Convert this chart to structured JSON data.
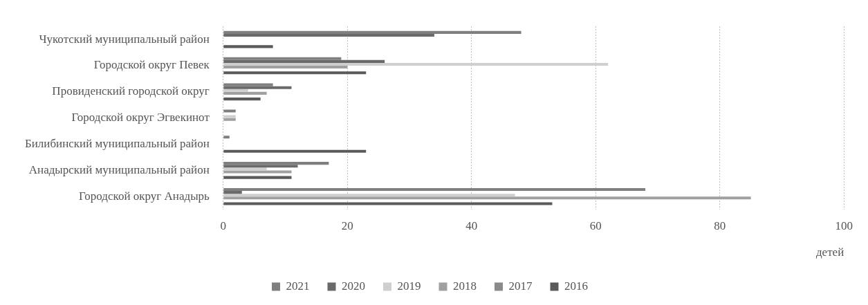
{
  "chart_data": {
    "type": "bar",
    "orientation": "horizontal",
    "categories": [
      "Чукотский муниципальный район",
      "Городской округ Певек",
      "Провиденский городской округ",
      "Городской округ Эгвекинот",
      "Билибинский муниципальный район",
      "Анадырский муниципальный район",
      "Городской округ Анадырь"
    ],
    "series": [
      {
        "name": "2021",
        "color": "#7f7f7f",
        "values": [
          48,
          19,
          8,
          2,
          1,
          17,
          68
        ]
      },
      {
        "name": "2020",
        "color": "#6a6a6a",
        "values": [
          34,
          26,
          11,
          null,
          null,
          12,
          3
        ]
      },
      {
        "name": "2019",
        "color": "#cfcfcf",
        "values": [
          null,
          62,
          4,
          2,
          null,
          7,
          47
        ]
      },
      {
        "name": "2018",
        "color": "#a0a0a0",
        "values": [
          null,
          20,
          7,
          2,
          null,
          11,
          85
        ]
      },
      {
        "name": "2017",
        "color": "#8a8a8a",
        "values": [
          null,
          null,
          null,
          null,
          null,
          null,
          null
        ]
      },
      {
        "name": "2016",
        "color": "#5a5a5a",
        "values": [
          8,
          23,
          6,
          null,
          23,
          11,
          53
        ]
      }
    ],
    "xlabel": "детей",
    "xlim": [
      0,
      100
    ],
    "xticks": [
      0,
      20,
      40,
      60,
      80,
      100
    ],
    "grid": "x",
    "legend": "bottom"
  }
}
